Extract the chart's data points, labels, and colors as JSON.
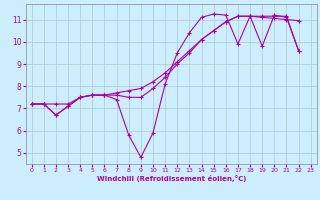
{
  "xlabel": "Windchill (Refroidissement éolien,°C)",
  "ylabel": "",
  "bg_color": "#cceeff",
  "line_color": "#aa00aa",
  "xlim": [
    -0.5,
    23.5
  ],
  "ylim": [
    4.5,
    11.7
  ],
  "xticks": [
    0,
    1,
    2,
    3,
    4,
    5,
    6,
    7,
    8,
    9,
    10,
    11,
    12,
    13,
    14,
    15,
    16,
    17,
    18,
    19,
    20,
    21,
    22,
    23
  ],
  "yticks": [
    5,
    6,
    7,
    8,
    9,
    10,
    11
  ],
  "grid_color": "#aacccc",
  "series": [
    [
      7.2,
      7.2,
      6.7,
      7.1,
      7.5,
      7.6,
      7.6,
      7.4,
      5.8,
      4.8,
      5.9,
      8.1,
      9.5,
      10.4,
      11.1,
      11.25,
      11.2,
      9.9,
      11.15,
      11.1,
      11.05,
      11.0,
      10.95
    ],
    [
      7.2,
      7.2,
      6.7,
      7.1,
      7.5,
      7.6,
      7.6,
      7.6,
      7.5,
      7.5,
      7.9,
      8.4,
      9.0,
      9.5,
      10.1,
      10.5,
      10.9,
      11.15,
      11.15,
      9.8,
      11.2,
      11.1,
      9.6
    ],
    [
      7.2,
      7.2,
      7.2,
      7.2,
      7.5,
      7.6,
      7.6,
      7.7,
      7.8,
      7.9,
      8.2,
      8.6,
      9.1,
      9.6,
      10.1,
      10.5,
      10.9,
      11.15,
      11.15,
      11.15,
      11.15,
      11.15,
      9.6
    ]
  ]
}
